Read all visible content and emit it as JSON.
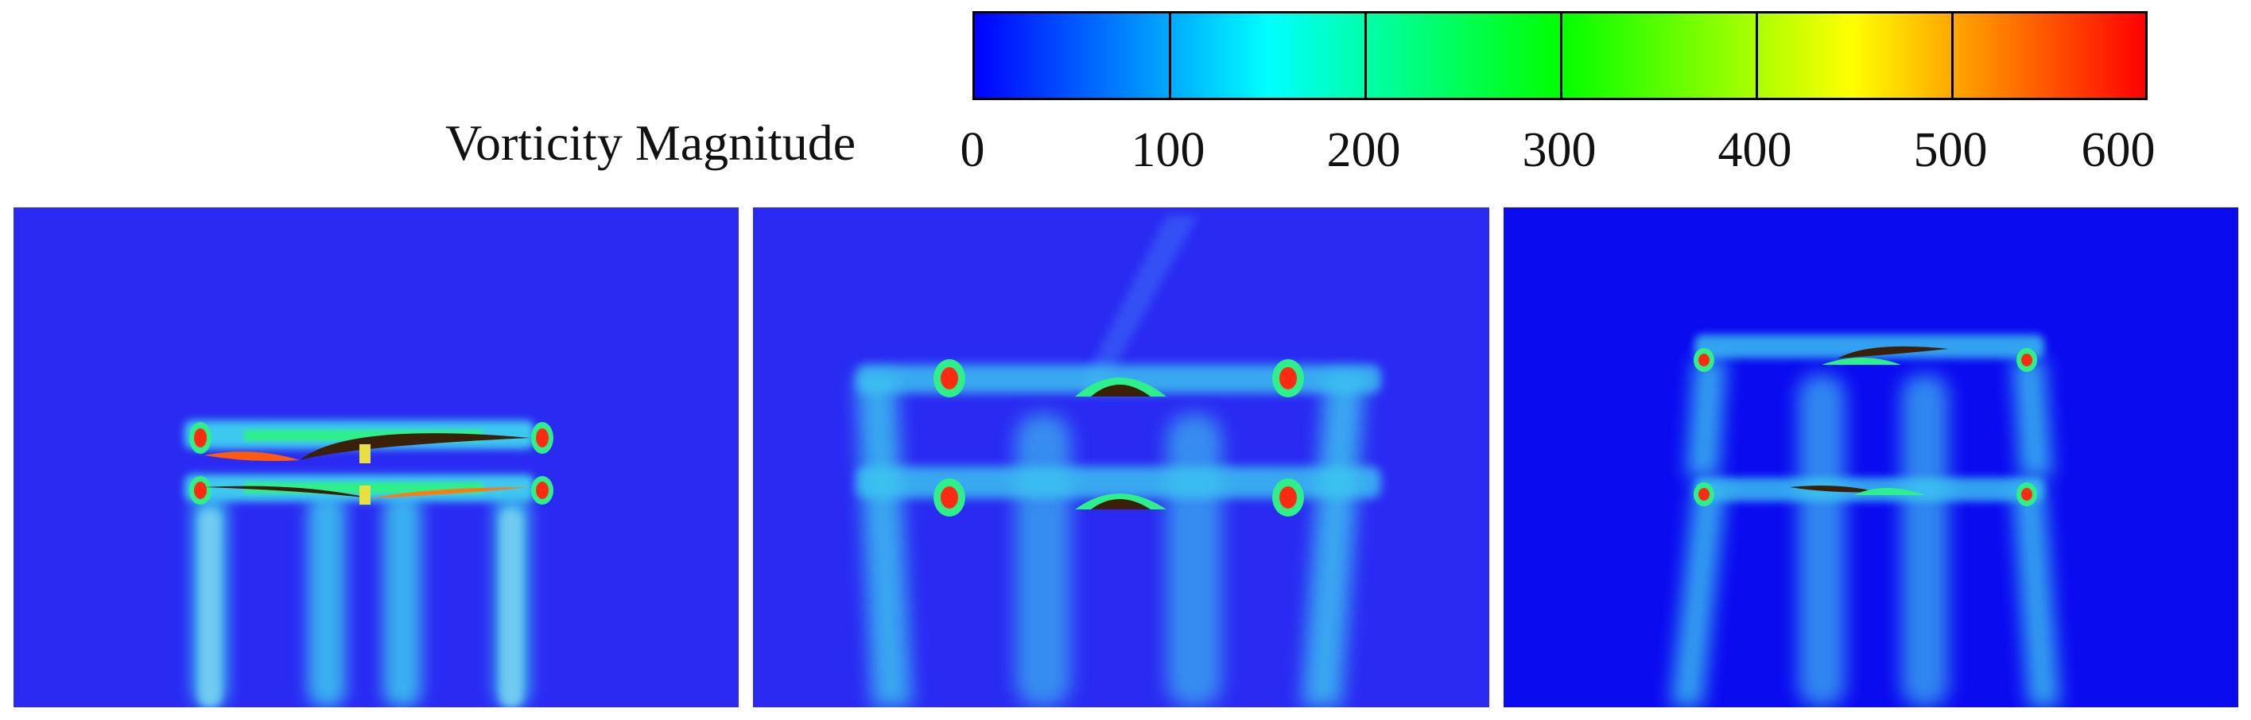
{
  "legend": {
    "title": "Vorticity Magnitude",
    "ticks": [
      "0",
      "100",
      "200",
      "300",
      "400",
      "500",
      "600"
    ],
    "range": [
      0,
      600
    ],
    "colormap": [
      "#0000ff",
      "#00ffff",
      "#00ff00",
      "#ffff00",
      "#ff0000"
    ]
  },
  "panels": [
    {
      "background": "#2a2af2"
    },
    {
      "background": "#2a2af2"
    },
    {
      "background": "#0b0bf0"
    }
  ],
  "colors": {
    "wake_cyan": "#3ec8f0",
    "wake_green": "#2ef08a",
    "vortex_core": "#ff2a10",
    "rotor_dark": "#3a2008"
  }
}
